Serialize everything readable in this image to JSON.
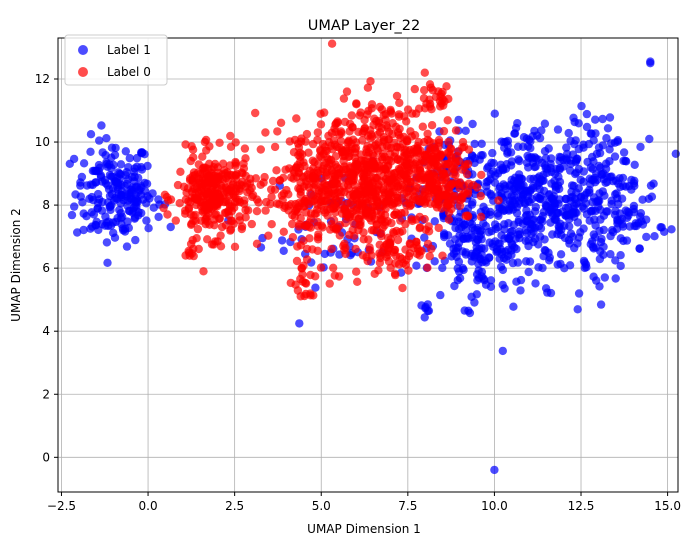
{
  "chart_data": {
    "type": "scatter",
    "title": "UMAP Layer_22",
    "xlabel": "UMAP Dimension 1",
    "ylabel": "UMAP Dimension 2",
    "xlim": [
      -2.6,
      15.3
    ],
    "ylim": [
      -1.1,
      13.3
    ],
    "xticks": [
      -2.5,
      0.0,
      2.5,
      5.0,
      7.5,
      10.0,
      12.5,
      15.0
    ],
    "xtick_labels": [
      "−2.5",
      "0.0",
      "2.5",
      "5.0",
      "7.5",
      "10.0",
      "12.5",
      "15.0"
    ],
    "yticks": [
      0,
      2,
      4,
      6,
      8,
      10,
      12
    ],
    "ytick_labels": [
      "0",
      "2",
      "4",
      "6",
      "8",
      "10",
      "12"
    ],
    "grid": true,
    "legend_position": "top-left",
    "series": [
      {
        "name": "Label 1",
        "color": "#0000ff",
        "clusters": [
          {
            "cx": -1.0,
            "cy": 8.4,
            "sx": 0.55,
            "sy": 0.85,
            "n": 170
          },
          {
            "cx": -0.3,
            "cy": 8.2,
            "sx": 0.35,
            "sy": 0.45,
            "n": 40
          },
          {
            "cx": 5.5,
            "cy": 7.3,
            "sx": 1.1,
            "sy": 0.9,
            "n": 60
          },
          {
            "cx": 8.8,
            "cy": 8.6,
            "sx": 0.6,
            "sy": 0.9,
            "n": 90
          },
          {
            "cx": 9.6,
            "cy": 6.8,
            "sx": 0.7,
            "sy": 0.8,
            "n": 140
          },
          {
            "cx": 10.7,
            "cy": 8.2,
            "sx": 0.8,
            "sy": 1.2,
            "n": 230
          },
          {
            "cx": 12.0,
            "cy": 8.1,
            "sx": 0.8,
            "sy": 1.3,
            "n": 230
          },
          {
            "cx": 13.4,
            "cy": 8.3,
            "sx": 0.7,
            "sy": 1.1,
            "n": 110
          },
          {
            "cx": 14.2,
            "cy": 7.5,
            "sx": 0.35,
            "sy": 0.25,
            "n": 20
          },
          {
            "cx": 8.0,
            "cy": 4.7,
            "sx": 0.06,
            "sy": 0.12,
            "n": 6
          },
          {
            "cx": 9.4,
            "cy": 5.0,
            "sx": 0.12,
            "sy": 0.2,
            "n": 6
          }
        ],
        "points": [
          {
            "x": 14.5,
            "y": 12.5
          },
          {
            "x": 14.5,
            "y": 12.55
          },
          {
            "x": 10.0,
            "y": -0.4
          }
        ]
      },
      {
        "name": "Label 0",
        "color": "#ff0000",
        "clusters": [
          {
            "cx": 1.9,
            "cy": 8.3,
            "sx": 0.55,
            "sy": 0.65,
            "n": 300
          },
          {
            "cx": 4.5,
            "cy": 8.7,
            "sx": 0.7,
            "sy": 0.9,
            "n": 150
          },
          {
            "cx": 5.8,
            "cy": 8.5,
            "sx": 0.8,
            "sy": 1.15,
            "n": 320
          },
          {
            "cx": 6.8,
            "cy": 9.2,
            "sx": 0.75,
            "sy": 1.1,
            "n": 320
          },
          {
            "cx": 8.3,
            "cy": 8.9,
            "sx": 0.55,
            "sy": 0.75,
            "n": 210
          },
          {
            "cx": 7.3,
            "cy": 6.6,
            "sx": 0.5,
            "sy": 0.4,
            "n": 60
          },
          {
            "cx": 4.6,
            "cy": 5.6,
            "sx": 0.25,
            "sy": 0.35,
            "n": 20
          },
          {
            "cx": 8.3,
            "cy": 11.4,
            "sx": 0.3,
            "sy": 0.2,
            "n": 25
          },
          {
            "cx": 1.3,
            "cy": 6.5,
            "sx": 0.12,
            "sy": 0.2,
            "n": 8
          }
        ],
        "points": [
          {
            "x": 1.6,
            "y": 5.9
          }
        ]
      }
    ]
  }
}
